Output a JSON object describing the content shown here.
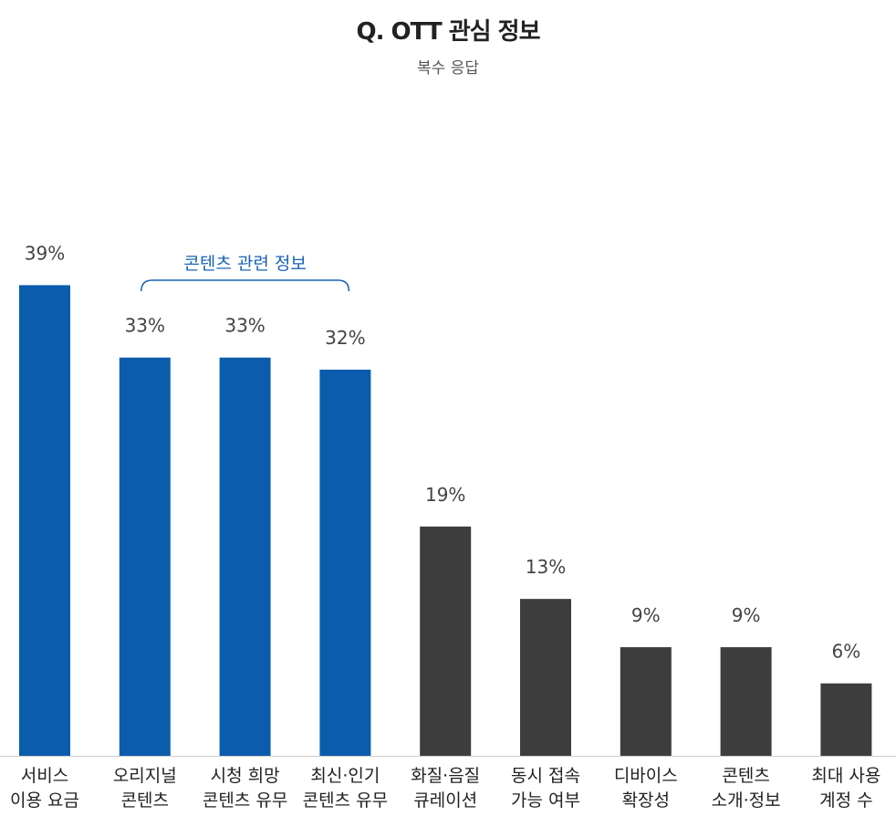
{
  "title": "Q. OTT 관심 정보",
  "subtitle": "복수 응답",
  "colors": {
    "highlight": "#0b5cad",
    "base": "#3d3d3d",
    "annotation": "#1a63b4",
    "axis": "#cccccc"
  },
  "chart_data": {
    "type": "bar",
    "title": "Q. OTT 관심 정보",
    "subtitle": "복수 응답",
    "categories": [
      [
        "서비스",
        "이용 요금"
      ],
      [
        "오리지널",
        "콘텐츠"
      ],
      [
        "시청 희망",
        "콘텐츠 유무"
      ],
      [
        "최신·인기",
        "콘텐츠 유무"
      ],
      [
        "화질·음질",
        "큐레이션"
      ],
      [
        "동시 접속",
        "가능 여부"
      ],
      [
        "디바이스",
        "확장성"
      ],
      [
        "콘텐츠",
        "소개·정보"
      ],
      [
        "최대 사용",
        "계정 수"
      ]
    ],
    "values": [
      39,
      33,
      33,
      32,
      19,
      13,
      9,
      9,
      6
    ],
    "value_labels": [
      "39%",
      "33%",
      "33%",
      "32%",
      "19%",
      "13%",
      "9%",
      "9%",
      "6%"
    ],
    "highlighted": [
      true,
      true,
      true,
      true,
      false,
      false,
      false,
      false,
      false
    ],
    "annotations": [
      {
        "text": "콘텐츠 관련 정보",
        "from_index": 1,
        "to_index": 3
      }
    ],
    "unit": "%",
    "ylim": [
      0,
      40
    ],
    "grid": false,
    "legend": "none"
  }
}
